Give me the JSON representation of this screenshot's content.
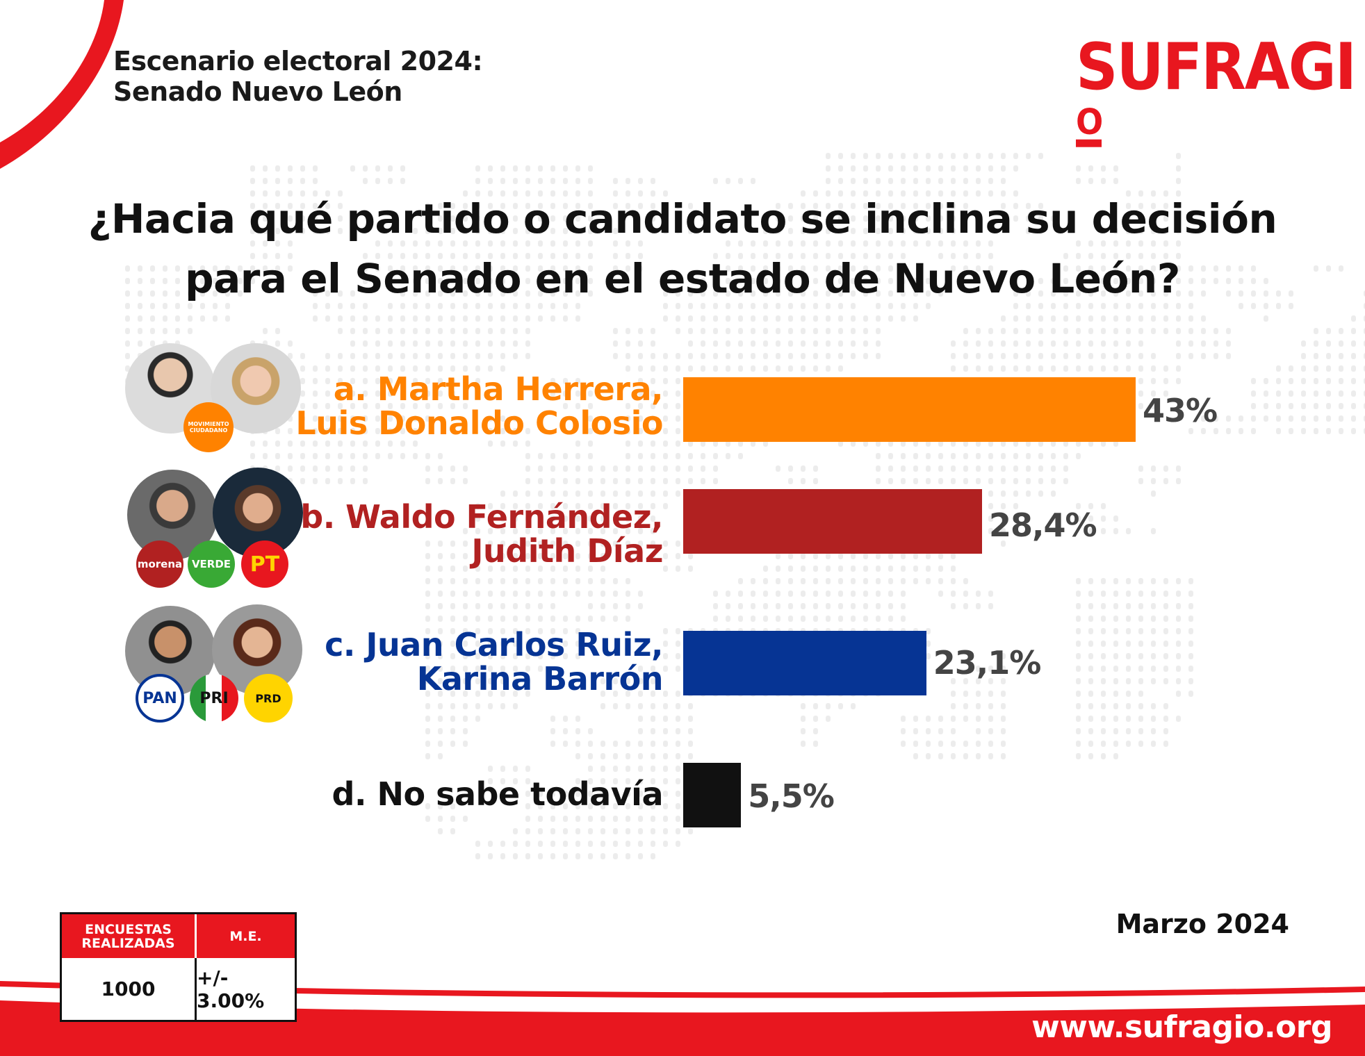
{
  "header": {
    "title_line1": "Escenario electoral 2024:",
    "title_line2": "Senado Nuevo León",
    "brand_logo": "SUFRAGIO"
  },
  "question": {
    "line1": "¿Hacia qué partido o candidato se inclina su decisión",
    "line2": "para el Senado en el estado de Nuevo León?"
  },
  "chart_data": {
    "type": "bar",
    "orientation": "horizontal",
    "categories": [
      "a. Martha Herrera, Luis Donaldo Colosio",
      "b. Waldo Fernández, Judith Díaz",
      "c. Juan Carlos Ruiz, Karina Barrón",
      "d. No sabe todavía"
    ],
    "values": [
      43,
      28.4,
      23.1,
      5.5
    ],
    "value_labels": [
      "43%",
      "28,4%",
      "23,1%",
      "5,5%"
    ],
    "colors": [
      "#ff8200",
      "#b12121",
      "#063494",
      "#111111"
    ],
    "label_lines": [
      [
        "a. Martha Herrera,",
        "Luis Donaldo Colosio"
      ],
      [
        "b. Waldo Fernández,",
        "Judith Díaz"
      ],
      [
        "c. Juan Carlos Ruiz,",
        "Karina Barrón"
      ],
      [
        "d. No sabe todavía"
      ]
    ],
    "party_badges": [
      [
        "MOVIMIENTO CIUDADANO"
      ],
      [
        "morena",
        "VERDE",
        "PT"
      ],
      [
        "PAN",
        "PRI",
        "PRD"
      ],
      []
    ],
    "xlim": [
      0,
      50
    ],
    "grid": false,
    "legend": "none"
  },
  "stats": {
    "surveys_header": "ENCUESTAS REALIZADAS",
    "me_header": "M.E.",
    "surveys_value": "1000",
    "me_value": "+/- 3.00%"
  },
  "date": "Marzo 2024",
  "website": "www.sufragio.org",
  "colors": {
    "brand_red": "#e8171f",
    "mc_orange": "#ff8200",
    "morena_red": "#b12121",
    "pan_blue": "#063494",
    "unknown_black": "#111111"
  }
}
